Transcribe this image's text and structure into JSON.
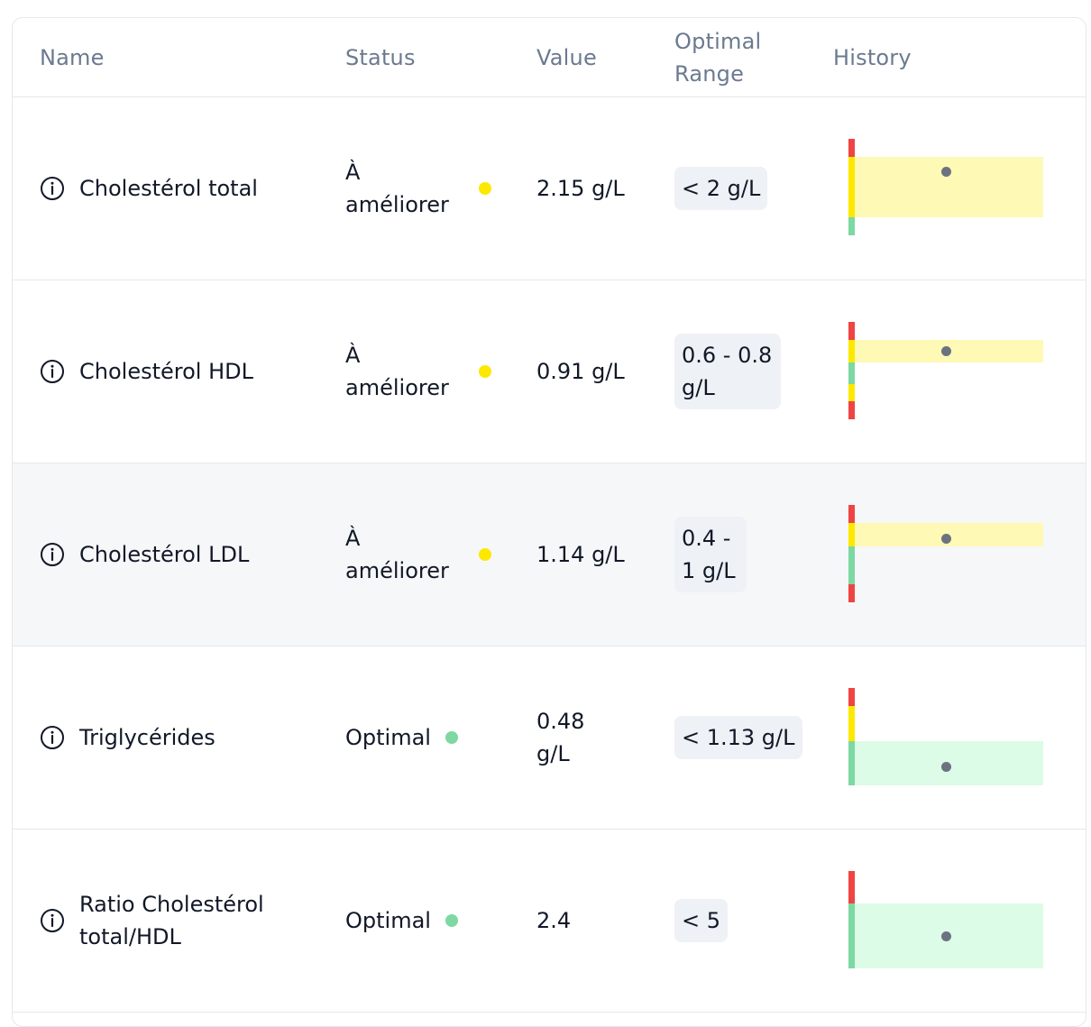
{
  "header": {
    "name": "Name",
    "status": "Status",
    "value": "Value",
    "optimal_range": "Optimal Range",
    "history": "History"
  },
  "colors": {
    "red": "#ef4444",
    "yellow": "#fde800",
    "green": "#7dd8a2",
    "yellow_band": "#fef9b4",
    "green_band": "#dcfce7",
    "point": "#6b7280",
    "header_text": "#6b7a90"
  },
  "rows": [
    {
      "name": "Cholestérol total",
      "status": "À améliorer",
      "status_color": "#fde800",
      "value": "2.15 g/L",
      "range": "< 2 g/L",
      "history_zone": "yellow"
    },
    {
      "name": "Cholestérol HDL",
      "status": "À améliorer",
      "status_color": "#fde800",
      "value": "0.91 g/L",
      "range": "0.6 - 0.8 g/L",
      "history_zone": "yellow"
    },
    {
      "name": "Cholestérol LDL",
      "status": "À améliorer",
      "status_color": "#fde800",
      "value": "1.14 g/L",
      "range": "0.4 - 1 g/L",
      "history_zone": "yellow"
    },
    {
      "name": "Triglycérides",
      "status": "Optimal",
      "status_color": "#7dd8a2",
      "value": "0.48 g/L",
      "range": "< 1.13 g/L",
      "history_zone": "green"
    },
    {
      "name": "Ratio Cholestérol total/HDL",
      "status": "Optimal",
      "status_color": "#7dd8a2",
      "value": "2.4",
      "range": "< 5",
      "history_zone": "green"
    }
  ]
}
